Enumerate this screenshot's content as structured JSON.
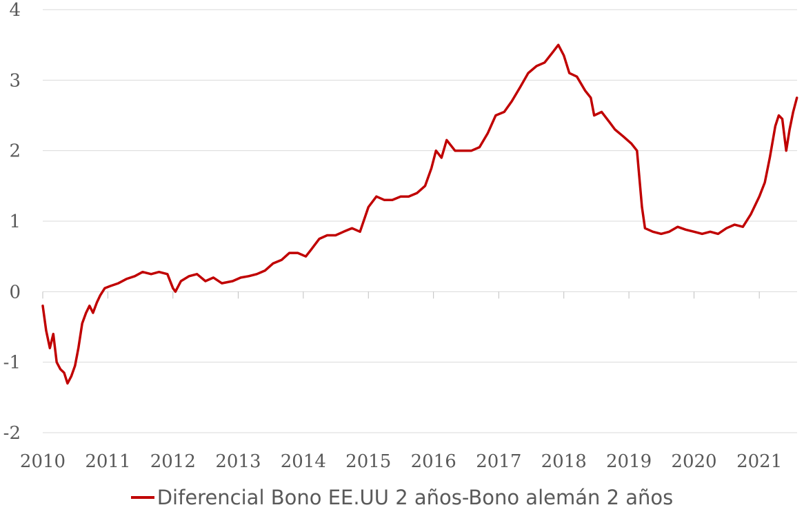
{
  "chart_data": {
    "type": "line",
    "title": "",
    "xlabel": "",
    "ylabel": "",
    "ylim": [
      -2,
      4
    ],
    "yticks": [
      "4",
      "3",
      "2",
      "1",
      "0",
      "-1",
      "-2"
    ],
    "ytick_values": [
      4,
      3,
      2,
      1,
      0,
      -1,
      -2
    ],
    "xlim": [
      "2010-01-01",
      "2021-08-01"
    ],
    "xticks": [
      "2010",
      "2011",
      "2012",
      "2013",
      "2014",
      "2015",
      "2016",
      "2017",
      "2018",
      "2019",
      "2020",
      "2021"
    ],
    "grid": true,
    "legend_position": "bottom",
    "color": "#c00000",
    "series": [
      {
        "name": "Diferencial Bono EE.UU 2 años-Bono alemán 2 años",
        "points": [
          [
            "2010-01-01",
            -0.2
          ],
          [
            "2010-01-20",
            -0.55
          ],
          [
            "2010-02-10",
            -0.8
          ],
          [
            "2010-03-01",
            -0.6
          ],
          [
            "2010-03-20",
            -1.0
          ],
          [
            "2010-04-10",
            -1.1
          ],
          [
            "2010-05-01",
            -1.15
          ],
          [
            "2010-05-20",
            -1.3
          ],
          [
            "2010-06-10",
            -1.2
          ],
          [
            "2010-07-01",
            -1.05
          ],
          [
            "2010-07-20",
            -0.8
          ],
          [
            "2010-08-10",
            -0.45
          ],
          [
            "2010-09-01",
            -0.3
          ],
          [
            "2010-09-20",
            -0.2
          ],
          [
            "2010-10-10",
            -0.3
          ],
          [
            "2010-11-01",
            -0.15
          ],
          [
            "2010-11-20",
            -0.05
          ],
          [
            "2010-12-15",
            0.05
          ],
          [
            "2011-01-15",
            0.08
          ],
          [
            "2011-03-01",
            0.12
          ],
          [
            "2011-04-15",
            0.18
          ],
          [
            "2011-06-01",
            0.22
          ],
          [
            "2011-07-15",
            0.28
          ],
          [
            "2011-09-01",
            0.25
          ],
          [
            "2011-10-15",
            0.28
          ],
          [
            "2011-12-01",
            0.25
          ],
          [
            "2012-01-01",
            0.05
          ],
          [
            "2012-01-15",
            0.0
          ],
          [
            "2012-02-15",
            0.15
          ],
          [
            "2012-04-01",
            0.22
          ],
          [
            "2012-05-15",
            0.25
          ],
          [
            "2012-07-01",
            0.15
          ],
          [
            "2012-08-15",
            0.2
          ],
          [
            "2012-10-01",
            0.12
          ],
          [
            "2012-12-01",
            0.15
          ],
          [
            "2013-01-15",
            0.2
          ],
          [
            "2013-03-01",
            0.22
          ],
          [
            "2013-04-15",
            0.25
          ],
          [
            "2013-06-01",
            0.3
          ],
          [
            "2013-07-15",
            0.4
          ],
          [
            "2013-09-01",
            0.45
          ],
          [
            "2013-10-15",
            0.55
          ],
          [
            "2013-12-01",
            0.55
          ],
          [
            "2014-01-15",
            0.5
          ],
          [
            "2014-02-15",
            0.6
          ],
          [
            "2014-04-01",
            0.75
          ],
          [
            "2014-05-15",
            0.8
          ],
          [
            "2014-07-01",
            0.8
          ],
          [
            "2014-08-15",
            0.85
          ],
          [
            "2014-10-01",
            0.9
          ],
          [
            "2014-11-15",
            0.85
          ],
          [
            "2015-01-01",
            1.2
          ],
          [
            "2015-02-15",
            1.35
          ],
          [
            "2015-04-01",
            1.3
          ],
          [
            "2015-05-15",
            1.3
          ],
          [
            "2015-07-01",
            1.35
          ],
          [
            "2015-08-15",
            1.35
          ],
          [
            "2015-10-01",
            1.4
          ],
          [
            "2015-11-15",
            1.5
          ],
          [
            "2015-12-20",
            1.75
          ],
          [
            "2016-01-15",
            2.0
          ],
          [
            "2016-02-15",
            1.9
          ],
          [
            "2016-03-15",
            2.15
          ],
          [
            "2016-05-01",
            2.0
          ],
          [
            "2016-06-15",
            2.0
          ],
          [
            "2016-08-01",
            2.0
          ],
          [
            "2016-09-15",
            2.05
          ],
          [
            "2016-11-01",
            2.25
          ],
          [
            "2016-12-15",
            2.5
          ],
          [
            "2017-02-01",
            2.55
          ],
          [
            "2017-03-15",
            2.7
          ],
          [
            "2017-05-01",
            2.9
          ],
          [
            "2017-06-15",
            3.1
          ],
          [
            "2017-08-01",
            3.2
          ],
          [
            "2017-09-15",
            3.25
          ],
          [
            "2017-11-01",
            3.4
          ],
          [
            "2017-12-01",
            3.5
          ],
          [
            "2018-01-01",
            3.35
          ],
          [
            "2018-02-01",
            3.1
          ],
          [
            "2018-03-15",
            3.05
          ],
          [
            "2018-05-01",
            2.85
          ],
          [
            "2018-06-01",
            2.75
          ],
          [
            "2018-06-20",
            2.5
          ],
          [
            "2018-08-01",
            2.55
          ],
          [
            "2018-09-15",
            2.4
          ],
          [
            "2018-10-15",
            2.3
          ],
          [
            "2018-12-01",
            2.2
          ],
          [
            "2019-01-15",
            2.1
          ],
          [
            "2019-02-15",
            2.0
          ],
          [
            "2019-03-01",
            1.6
          ],
          [
            "2019-03-15",
            1.2
          ],
          [
            "2019-04-01",
            0.9
          ],
          [
            "2019-05-15",
            0.85
          ],
          [
            "2019-07-01",
            0.82
          ],
          [
            "2019-08-15",
            0.85
          ],
          [
            "2019-10-01",
            0.92
          ],
          [
            "2019-11-15",
            0.88
          ],
          [
            "2020-01-01",
            0.85
          ],
          [
            "2020-02-15",
            0.82
          ],
          [
            "2020-04-01",
            0.85
          ],
          [
            "2020-05-15",
            0.82
          ],
          [
            "2020-07-01",
            0.9
          ],
          [
            "2020-08-15",
            0.95
          ],
          [
            "2020-10-01",
            0.92
          ],
          [
            "2020-11-15",
            1.1
          ],
          [
            "2021-01-01",
            1.35
          ],
          [
            "2021-02-01",
            1.55
          ],
          [
            "2021-03-01",
            1.9
          ],
          [
            "2021-04-01",
            2.35
          ],
          [
            "2021-04-20",
            2.5
          ],
          [
            "2021-05-10",
            2.45
          ],
          [
            "2021-06-01",
            2.0
          ],
          [
            "2021-06-20",
            2.3
          ],
          [
            "2021-07-10",
            2.55
          ],
          [
            "2021-07-31",
            2.75
          ]
        ]
      }
    ]
  }
}
